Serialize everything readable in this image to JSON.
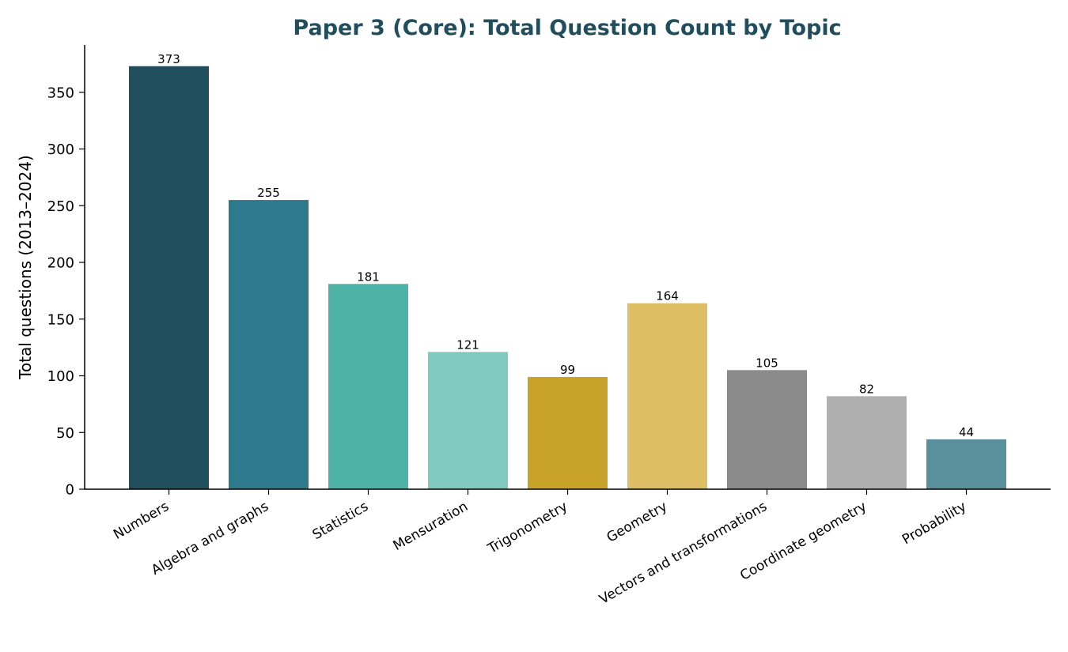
{
  "chart_data": {
    "type": "bar",
    "title": "Paper 3 (Core): Total Question Count by Topic",
    "xlabel": "",
    "ylabel": "Total questions (2013–2024)",
    "categories": [
      "Numbers",
      "Algebra and graphs",
      "Statistics",
      "Mensuration",
      "Trigonometry",
      "Geometry",
      "Vectors and transformations",
      "Coordinate geometry",
      "Probability"
    ],
    "values": [
      373,
      255,
      181,
      121,
      99,
      164,
      105,
      82,
      44
    ],
    "data_labels": [
      "373",
      "255",
      "181",
      "121",
      "99",
      "164",
      "105",
      "82",
      "44"
    ],
    "bar_colors": [
      "#214e5c",
      "#2e798b",
      "#4fb3a8",
      "#80c9bf",
      "#c9a22a",
      "#dfbf66",
      "#8a8a8a",
      "#b0b0b0",
      "#5a8f9c"
    ],
    "yticks": [
      0,
      50,
      100,
      150,
      200,
      250,
      300,
      350
    ],
    "ytick_labels": [
      "0",
      "50",
      "100",
      "150",
      "200",
      "250",
      "300",
      "350"
    ],
    "ylim": [
      0,
      391.65
    ],
    "grid": false,
    "legend": "none",
    "title_color": "#214e5c"
  }
}
